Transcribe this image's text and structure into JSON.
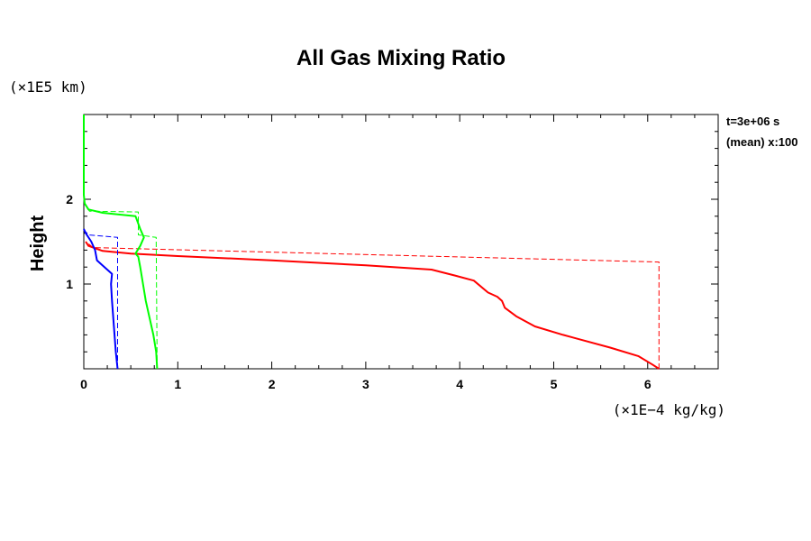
{
  "chart_data": {
    "type": "line",
    "title": "All Gas Mixing Ratio",
    "ylabel": "Height",
    "xlabel": "",
    "y_unit": "(×1E5 km)",
    "x_unit": "(×1E−4 kg/kg)",
    "xlim": [
      0,
      6.75
    ],
    "ylim": [
      0,
      3.0
    ],
    "x_ticks": [
      "0",
      "1",
      "2",
      "3",
      "4",
      "5",
      "6"
    ],
    "y_ticks": [
      "1",
      "2"
    ],
    "annotations": [
      "t=3e+06 s",
      "(mean) x:100"
    ],
    "series": [
      {
        "color": "#ff0000",
        "style": "solid",
        "points": [
          [
            6.12,
            0.0
          ],
          [
            6.05,
            0.05
          ],
          [
            5.9,
            0.15
          ],
          [
            5.6,
            0.25
          ],
          [
            5.1,
            0.4
          ],
          [
            4.8,
            0.5
          ],
          [
            4.6,
            0.62
          ],
          [
            4.48,
            0.72
          ],
          [
            4.45,
            0.8
          ],
          [
            4.4,
            0.85
          ],
          [
            4.3,
            0.9
          ],
          [
            4.15,
            1.04
          ],
          [
            3.95,
            1.1
          ],
          [
            3.7,
            1.17
          ],
          [
            3.0,
            1.22
          ],
          [
            2.0,
            1.28
          ],
          [
            1.0,
            1.33
          ],
          [
            0.5,
            1.36
          ],
          [
            0.2,
            1.39
          ],
          [
            0.05,
            1.45
          ],
          [
            0.02,
            1.5
          ]
        ]
      },
      {
        "color": "#ff0000",
        "style": "dashed",
        "points": [
          [
            6.12,
            0.0
          ],
          [
            6.12,
            1.26
          ],
          [
            0.1,
            1.43
          ],
          [
            0.02,
            1.5
          ]
        ]
      },
      {
        "color": "#00ff00",
        "style": "solid",
        "points": [
          [
            0.78,
            0.0
          ],
          [
            0.77,
            0.2
          ],
          [
            0.74,
            0.4
          ],
          [
            0.7,
            0.6
          ],
          [
            0.66,
            0.8
          ],
          [
            0.63,
            1.0
          ],
          [
            0.6,
            1.2
          ],
          [
            0.58,
            1.32
          ],
          [
            0.55,
            1.36
          ],
          [
            0.6,
            1.45
          ],
          [
            0.64,
            1.55
          ],
          [
            0.6,
            1.65
          ],
          [
            0.55,
            1.8
          ],
          [
            0.2,
            1.84
          ],
          [
            0.05,
            1.88
          ],
          [
            0.01,
            1.95
          ],
          [
            0.0,
            2.05
          ],
          [
            0.0,
            3.0
          ]
        ]
      },
      {
        "color": "#00ff00",
        "style": "dashed",
        "points": [
          [
            0.78,
            0.0
          ],
          [
            0.77,
            1.55
          ],
          [
            0.58,
            1.58
          ],
          [
            0.58,
            1.85
          ],
          [
            0.06,
            1.86
          ],
          [
            0.01,
            1.94
          ]
        ]
      },
      {
        "color": "#0000ff",
        "style": "solid",
        "points": [
          [
            0.36,
            0.0
          ],
          [
            0.34,
            0.2
          ],
          [
            0.32,
            0.5
          ],
          [
            0.3,
            0.8
          ],
          [
            0.29,
            1.0
          ],
          [
            0.3,
            1.12
          ],
          [
            0.22,
            1.2
          ],
          [
            0.14,
            1.28
          ],
          [
            0.12,
            1.4
          ],
          [
            0.08,
            1.5
          ],
          [
            0.02,
            1.6
          ],
          [
            0.0,
            1.65
          ]
        ]
      },
      {
        "color": "#0000ff",
        "style": "dashed",
        "points": [
          [
            0.36,
            0.0
          ],
          [
            0.36,
            1.55
          ],
          [
            0.05,
            1.58
          ],
          [
            0.0,
            1.64
          ]
        ]
      }
    ]
  }
}
